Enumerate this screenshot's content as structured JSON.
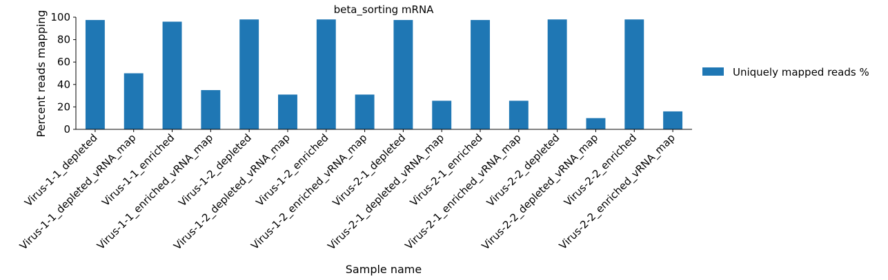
{
  "chart_data": {
    "type": "bar",
    "title": "beta_sorting mRNA",
    "xlabel": "Sample name",
    "ylabel": "Percent reads mapping",
    "ylim": [
      0,
      100
    ],
    "yticks": [
      0,
      20,
      40,
      60,
      80,
      100
    ],
    "categories": [
      "Virus-1-1_depleted",
      "Virus-1-1_depleted_vRNA_map",
      "Virus-1-1_enriched",
      "Virus-1-1_enriched_vRNA_map",
      "Virus-1-2_depleted",
      "Virus-1-2_depleted_vRNA_map",
      "Virus-1-2_enriched",
      "Virus-1-2_enriched_vRNA_map",
      "Virus-2-1_depleted",
      "Virus-2-1_depleted_vRNA_map",
      "Virus-2-1_enriched",
      "Virus-2-1_enriched_vRNA_map",
      "Virus-2-2_depleted",
      "Virus-2-2_depleted_vRNA_map",
      "Virus-2-2_enriched",
      "Virus-2-2_enriched_vRNA_map"
    ],
    "series": [
      {
        "name": "Uniquely mapped reads %",
        "color": "#1f77b4",
        "values": [
          97.5,
          50,
          96,
          35,
          98,
          31,
          98,
          31,
          97.5,
          25.5,
          97.5,
          25.5,
          98,
          10,
          98,
          16
        ]
      }
    ],
    "grid": false,
    "legend_position": "right"
  }
}
